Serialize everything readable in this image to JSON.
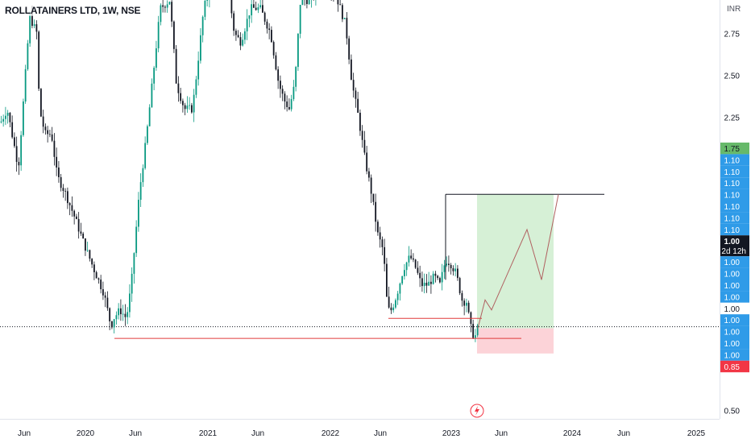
{
  "header": {
    "title": "ROLLATAINERS LTD, 1W, NSE",
    "currency": "INR"
  },
  "colors": {
    "up": "#089981",
    "down": "#131722",
    "support_line": "#e03b3b",
    "target_line": "#131722",
    "profit_zone": "#d6f0d6",
    "loss_zone": "#fcd3d8",
    "projection": "#b06060",
    "label_blue": "#2f9be8",
    "label_green": "#67b96a",
    "label_red": "#f23645",
    "label_dark": "#131722"
  },
  "chart_data": {
    "type": "candlestick",
    "symbol": "ROLLATAINERS LTD",
    "interval": "1W",
    "exchange": "NSE",
    "ylabel": "INR",
    "ylim": [
      0.45,
      2.95
    ],
    "price_ticks": [
      "2.75",
      "2.50",
      "2.25",
      "0.50"
    ],
    "time_ticks": [
      "Jun",
      "2020",
      "Jun",
      "2021",
      "Jun",
      "2022",
      "Jun",
      "2023",
      "Jun",
      "2024",
      "Jun",
      "2025"
    ],
    "price_labels": [
      {
        "text": "1.75",
        "style": "green"
      },
      {
        "text": "1.10",
        "style": "blue"
      },
      {
        "text": "1.10",
        "style": "blue"
      },
      {
        "text": "1.10",
        "style": "blue"
      },
      {
        "text": "1.10",
        "style": "blue"
      },
      {
        "text": "1.10",
        "style": "blue"
      },
      {
        "text": "1.10",
        "style": "blue"
      },
      {
        "text": "1.10",
        "style": "blue"
      },
      {
        "text": "1.00",
        "sub": "2d 12h",
        "style": "dark"
      },
      {
        "text": "1.00",
        "style": "blue"
      },
      {
        "text": "1.00",
        "style": "blue"
      },
      {
        "text": "1.00",
        "style": "blue"
      },
      {
        "text": "1.00",
        "style": "blue"
      },
      {
        "text": "1.00",
        "style": "white"
      },
      {
        "text": "1.00",
        "style": "blue"
      },
      {
        "text": "1.00",
        "style": "blue"
      },
      {
        "text": "1.00",
        "style": "blue"
      },
      {
        "text": "1.00",
        "style": "blue"
      },
      {
        "text": "0.85",
        "style": "red"
      }
    ],
    "last_price": 1.0,
    "countdown": "2d 12h",
    "drawings": {
      "support_line": {
        "price": 0.93
      },
      "range_low_line": {
        "price": 1.05
      },
      "target_line": {
        "price": 1.79
      },
      "position": {
        "entry": 0.99,
        "target": 1.79,
        "stop": 0.84
      }
    }
  }
}
